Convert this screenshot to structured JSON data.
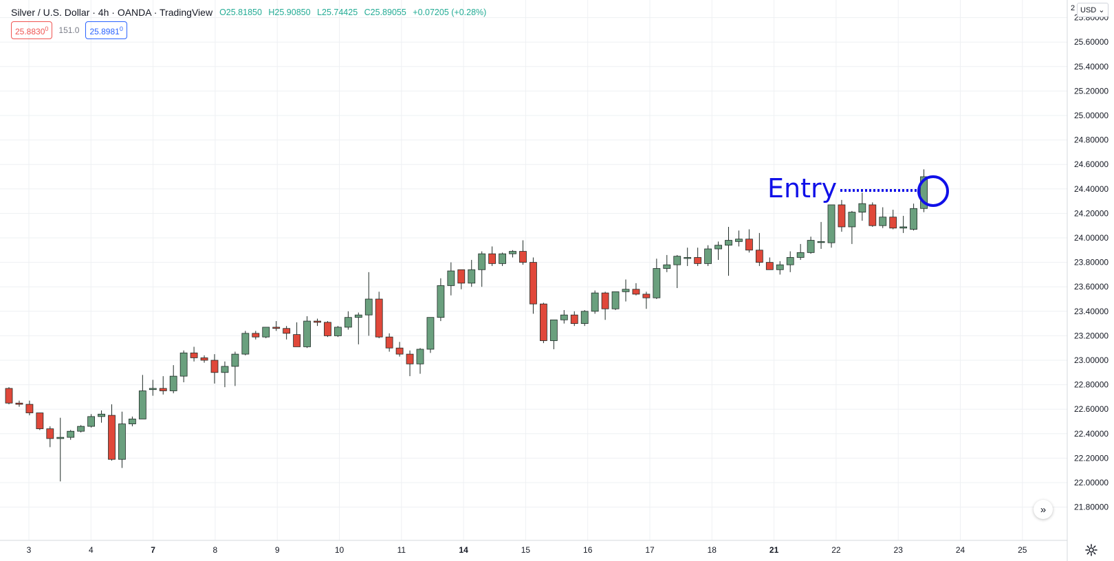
{
  "legend": {
    "symbol": "Silver / U.S. Dollar · 4h · OANDA · TradingView",
    "open": "O25.81850",
    "high": "H25.90850",
    "low": "L25.74425",
    "close": "C25.89055",
    "change": "+0.07205 (+0.28%)",
    "sell": "25.8830",
    "sell_sup": "0",
    "spread": "151.0",
    "buy": "25.8981",
    "buy_sup": "0"
  },
  "currency": "USD",
  "top_label": "2",
  "colors": {
    "up": "#6aa07e",
    "down": "#e0483a",
    "grid": "#eef0f3",
    "annotation": "#1010e8"
  },
  "annotation": {
    "label": "Entry",
    "price": 24.5
  },
  "nav_icon": "double-chevron-right-icon",
  "settings_icon": "gear-icon",
  "chart_data": {
    "type": "candlestick",
    "ylim": [
      21.7,
      26.0
    ],
    "y_ticks": [
      "21.80000",
      "22.00000",
      "22.20000",
      "22.40000",
      "22.60000",
      "22.80000",
      "23.00000",
      "23.20000",
      "23.40000",
      "23.60000",
      "23.80000",
      "24.00000",
      "24.20000",
      "24.40000",
      "24.60000",
      "24.80000",
      "25.00000",
      "25.20000",
      "25.40000",
      "25.60000",
      "25.80000"
    ],
    "x_ticks": [
      {
        "label": "3",
        "bold": false
      },
      {
        "label": "4",
        "bold": false
      },
      {
        "label": "7",
        "bold": true
      },
      {
        "label": "8",
        "bold": false
      },
      {
        "label": "9",
        "bold": false
      },
      {
        "label": "10",
        "bold": false
      },
      {
        "label": "11",
        "bold": false
      },
      {
        "label": "14",
        "bold": true
      },
      {
        "label": "15",
        "bold": false
      },
      {
        "label": "16",
        "bold": false
      },
      {
        "label": "17",
        "bold": false
      },
      {
        "label": "18",
        "bold": false
      },
      {
        "label": "21",
        "bold": true
      },
      {
        "label": "22",
        "bold": false
      },
      {
        "label": "23",
        "bold": false
      },
      {
        "label": "24",
        "bold": false
      },
      {
        "label": "25",
        "bold": false
      }
    ],
    "candles": [
      [
        22.77,
        22.78,
        22.64,
        22.65
      ],
      [
        22.65,
        22.67,
        22.62,
        22.64
      ],
      [
        22.64,
        22.67,
        22.55,
        22.57
      ],
      [
        22.57,
        22.57,
        22.43,
        22.44
      ],
      [
        22.44,
        22.46,
        22.29,
        22.36
      ],
      [
        22.36,
        22.53,
        22.01,
        22.37
      ],
      [
        22.37,
        22.43,
        22.35,
        22.42
      ],
      [
        22.42,
        22.47,
        22.41,
        22.46
      ],
      [
        22.46,
        22.56,
        22.45,
        22.54
      ],
      [
        22.54,
        22.59,
        22.49,
        22.56
      ],
      [
        22.55,
        22.64,
        22.18,
        22.19
      ],
      [
        22.19,
        22.58,
        22.12,
        22.48
      ],
      [
        22.48,
        22.54,
        22.46,
        22.52
      ],
      [
        22.52,
        22.88,
        22.52,
        22.75
      ],
      [
        22.76,
        22.84,
        22.71,
        22.77
      ],
      [
        22.77,
        22.87,
        22.72,
        22.75
      ],
      [
        22.75,
        22.96,
        22.73,
        22.87
      ],
      [
        22.87,
        23.08,
        22.82,
        23.06
      ],
      [
        23.06,
        23.11,
        22.99,
        23.02
      ],
      [
        23.02,
        23.04,
        22.98,
        23.0
      ],
      [
        23.0,
        23.05,
        22.81,
        22.9
      ],
      [
        22.9,
        22.99,
        22.78,
        22.95
      ],
      [
        22.95,
        23.07,
        22.79,
        23.05
      ],
      [
        23.05,
        23.24,
        23.04,
        23.22
      ],
      [
        23.22,
        23.24,
        23.17,
        23.19
      ],
      [
        23.19,
        23.27,
        23.18,
        23.27
      ],
      [
        23.27,
        23.32,
        23.24,
        23.26
      ],
      [
        23.26,
        23.28,
        23.17,
        23.22
      ],
      [
        23.21,
        23.31,
        23.11,
        23.11
      ],
      [
        23.11,
        23.36,
        23.1,
        23.32
      ],
      [
        23.32,
        23.34,
        23.28,
        23.31
      ],
      [
        23.31,
        23.32,
        23.19,
        23.2
      ],
      [
        23.2,
        23.28,
        23.19,
        23.27
      ],
      [
        23.27,
        23.4,
        23.25,
        23.35
      ],
      [
        23.35,
        23.39,
        23.13,
        23.37
      ],
      [
        23.37,
        23.72,
        23.2,
        23.5
      ],
      [
        23.5,
        23.56,
        23.18,
        23.19
      ],
      [
        23.19,
        23.22,
        23.07,
        23.1
      ],
      [
        23.1,
        23.15,
        23.03,
        23.05
      ],
      [
        23.05,
        23.08,
        22.87,
        22.97
      ],
      [
        22.97,
        23.1,
        22.89,
        23.09
      ],
      [
        23.09,
        23.35,
        23.06,
        23.35
      ],
      [
        23.35,
        23.67,
        23.32,
        23.61
      ],
      [
        23.61,
        23.8,
        23.53,
        23.73
      ],
      [
        23.74,
        23.74,
        23.58,
        23.63
      ],
      [
        23.63,
        23.82,
        23.6,
        23.74
      ],
      [
        23.74,
        23.89,
        23.6,
        23.87
      ],
      [
        23.87,
        23.93,
        23.77,
        23.79
      ],
      [
        23.79,
        23.88,
        23.77,
        23.87
      ],
      [
        23.87,
        23.9,
        23.84,
        23.89
      ],
      [
        23.89,
        23.98,
        23.78,
        23.8
      ],
      [
        23.8,
        23.84,
        23.38,
        23.46
      ],
      [
        23.46,
        23.47,
        23.14,
        23.16
      ],
      [
        23.16,
        23.33,
        23.09,
        23.33
      ],
      [
        23.33,
        23.41,
        23.3,
        23.37
      ],
      [
        23.37,
        23.4,
        23.28,
        23.3
      ],
      [
        23.3,
        23.41,
        23.28,
        23.4
      ],
      [
        23.4,
        23.57,
        23.38,
        23.55
      ],
      [
        23.55,
        23.56,
        23.33,
        23.42
      ],
      [
        23.42,
        23.56,
        23.41,
        23.56
      ],
      [
        23.56,
        23.66,
        23.48,
        23.58
      ],
      [
        23.58,
        23.63,
        23.53,
        23.54
      ],
      [
        23.54,
        23.56,
        23.42,
        23.51
      ],
      [
        23.51,
        23.83,
        23.5,
        23.75
      ],
      [
        23.75,
        23.86,
        23.72,
        23.78
      ],
      [
        23.78,
        23.86,
        23.59,
        23.85
      ],
      [
        23.84,
        23.92,
        23.77,
        23.84
      ],
      [
        23.84,
        23.92,
        23.77,
        23.79
      ],
      [
        23.79,
        23.94,
        23.77,
        23.91
      ],
      [
        23.91,
        23.97,
        23.82,
        23.94
      ],
      [
        23.94,
        24.09,
        23.69,
        23.98
      ],
      [
        23.97,
        24.06,
        23.93,
        23.99
      ],
      [
        23.99,
        24.07,
        23.88,
        23.9
      ],
      [
        23.9,
        24.04,
        23.77,
        23.8
      ],
      [
        23.8,
        23.84,
        23.74,
        23.74
      ],
      [
        23.74,
        23.81,
        23.7,
        23.78
      ],
      [
        23.78,
        23.89,
        23.72,
        23.84
      ],
      [
        23.84,
        23.95,
        23.82,
        23.88
      ],
      [
        23.88,
        24.01,
        23.87,
        23.98
      ],
      [
        23.97,
        24.13,
        23.91,
        23.97
      ],
      [
        23.96,
        24.27,
        23.92,
        24.27
      ],
      [
        24.27,
        24.31,
        24.05,
        24.09
      ],
      [
        24.09,
        24.22,
        23.95,
        24.21
      ],
      [
        24.21,
        24.37,
        24.14,
        24.28
      ],
      [
        24.27,
        24.29,
        24.09,
        24.1
      ],
      [
        24.1,
        24.25,
        24.08,
        24.17
      ],
      [
        24.17,
        24.23,
        24.07,
        24.08
      ],
      [
        24.08,
        24.18,
        24.04,
        24.09
      ],
      [
        24.07,
        24.28,
        24.06,
        24.24
      ],
      [
        24.24,
        24.56,
        24.21,
        24.5
      ]
    ]
  }
}
